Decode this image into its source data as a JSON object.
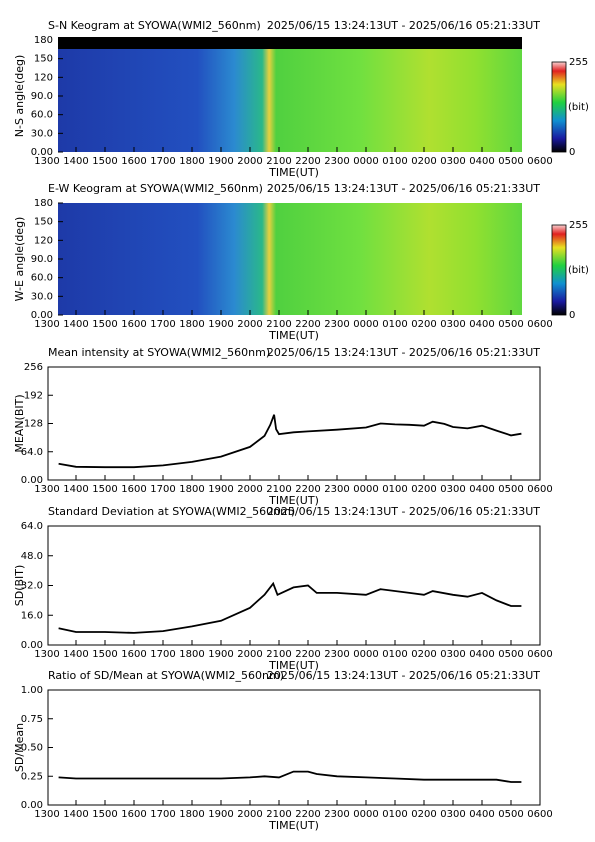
{
  "chart_data": [
    {
      "type": "keogram",
      "title": "S-N Keogram at SYOWA(WMI2_560nm)",
      "subtitle": "2025/06/15 13:24:13UT - 2025/06/16 05:21:33UT",
      "y_label": "N-S angle(deg)",
      "x_label": "TIME(UT)",
      "xlim": [
        13,
        30
      ],
      "xticks": [
        {
          "value": 13,
          "label": "1300"
        },
        {
          "value": 14,
          "label": "1400"
        },
        {
          "value": 15,
          "label": "1500"
        },
        {
          "value": 16,
          "label": "1600"
        },
        {
          "value": 17,
          "label": "1700"
        },
        {
          "value": 18,
          "label": "1800"
        },
        {
          "value": 19,
          "label": "1900"
        },
        {
          "value": 20,
          "label": "2000"
        },
        {
          "value": 21,
          "label": "2100"
        },
        {
          "value": 22,
          "label": "2200"
        },
        {
          "value": 23,
          "label": "2300"
        },
        {
          "value": 24,
          "label": "0000"
        },
        {
          "value": 25,
          "label": "0100"
        },
        {
          "value": 26,
          "label": "0200"
        },
        {
          "value": 27,
          "label": "0300"
        },
        {
          "value": 28,
          "label": "0400"
        },
        {
          "value": 29,
          "label": "0500"
        },
        {
          "value": 30,
          "label": "0600"
        }
      ],
      "ylim": [
        0,
        180
      ],
      "yticks": [
        {
          "value": 0,
          "label": "0.00"
        },
        {
          "value": 30,
          "label": "30.0"
        },
        {
          "value": 60,
          "label": "60.0"
        },
        {
          "value": 90,
          "label": "90.0"
        },
        120,
        150,
        180
      ],
      "colorbar_label": "(bit)",
      "colorbar_ticks": [
        0,
        255
      ]
    },
    {
      "type": "keogram",
      "title": "E-W Keogram at SYOWA(WMI2_560nm)",
      "subtitle": "2025/06/15 13:24:13UT - 2025/06/16 05:21:33UT",
      "y_label": "W-E angle(deg)",
      "x_label": "TIME(UT)",
      "xlim": [
        13,
        30
      ],
      "xticks": [
        {
          "value": 13,
          "label": "1300"
        },
        {
          "value": 14,
          "label": "1400"
        },
        {
          "value": 15,
          "label": "1500"
        },
        {
          "value": 16,
          "label": "1600"
        },
        {
          "value": 17,
          "label": "1700"
        },
        {
          "value": 18,
          "label": "1800"
        },
        {
          "value": 19,
          "label": "1900"
        },
        {
          "value": 20,
          "label": "2000"
        },
        {
          "value": 21,
          "label": "2100"
        },
        {
          "value": 22,
          "label": "2200"
        },
        {
          "value": 23,
          "label": "2300"
        },
        {
          "value": 24,
          "label": "0000"
        },
        {
          "value": 25,
          "label": "0100"
        },
        {
          "value": 26,
          "label": "0200"
        },
        {
          "value": 27,
          "label": "0300"
        },
        {
          "value": 28,
          "label": "0400"
        },
        {
          "value": 29,
          "label": "0500"
        },
        {
          "value": 30,
          "label": "0600"
        }
      ],
      "ylim": [
        0,
        180
      ],
      "yticks": [
        {
          "value": 0,
          "label": "0.00"
        },
        {
          "value": 30,
          "label": "30.0"
        },
        {
          "value": 60,
          "label": "60.0"
        },
        {
          "value": 90,
          "label": "90.0"
        },
        120,
        150,
        180
      ],
      "colorbar_label": "(bit)",
      "colorbar_ticks": [
        0,
        255
      ]
    },
    {
      "type": "line",
      "title": "Mean intensity at SYOWA(WMI2_560nm)",
      "subtitle": "2025/06/15 13:24:13UT - 2025/06/16 05:21:33UT",
      "y_label": "MEAN(BIT)",
      "x_label": "TIME(UT)",
      "color": "#000000",
      "xlim": [
        13,
        30
      ],
      "xticks": [
        {
          "value": 13,
          "label": "1300"
        },
        {
          "value": 14,
          "label": "1400"
        },
        {
          "value": 15,
          "label": "1500"
        },
        {
          "value": 16,
          "label": "1600"
        },
        {
          "value": 17,
          "label": "1700"
        },
        {
          "value": 18,
          "label": "1800"
        },
        {
          "value": 19,
          "label": "1900"
        },
        {
          "value": 20,
          "label": "2000"
        },
        {
          "value": 21,
          "label": "2100"
        },
        {
          "value": 22,
          "label": "2200"
        },
        {
          "value": 23,
          "label": "2300"
        },
        {
          "value": 24,
          "label": "0000"
        },
        {
          "value": 25,
          "label": "0100"
        },
        {
          "value": 26,
          "label": "0200"
        },
        {
          "value": 27,
          "label": "0300"
        },
        {
          "value": 28,
          "label": "0400"
        },
        {
          "value": 29,
          "label": "0500"
        },
        {
          "value": 30,
          "label": "0600"
        }
      ],
      "ylim": [
        0,
        256
      ],
      "yticks": [
        {
          "value": 0,
          "label": "0.00"
        },
        {
          "value": 64,
          "label": "64.0"
        },
        128,
        192,
        256
      ],
      "x": [
        13.4,
        14,
        15,
        16,
        17,
        18,
        19,
        20,
        20.5,
        20.7,
        20.83,
        20.9,
        21,
        21.5,
        22,
        23,
        24,
        24.5,
        25,
        25.5,
        26,
        26.3,
        26.7,
        27,
        27.5,
        28,
        28.5,
        29,
        29.36
      ],
      "values": [
        37,
        30,
        29,
        29,
        33,
        41,
        53,
        75,
        100,
        125,
        148,
        115,
        104,
        108,
        110,
        114,
        119,
        128,
        126,
        125,
        123,
        132,
        127,
        120,
        117,
        123,
        112,
        101,
        105
      ]
    },
    {
      "type": "line",
      "title": "Standard Deviation at SYOWA(WMI2_560nm)",
      "subtitle": "2025/06/15 13:24:13UT - 2025/06/16 05:21:33UT",
      "y_label": "SD(BIT)",
      "x_label": "TIME(UT)",
      "color": "#000000",
      "xlim": [
        13,
        30
      ],
      "xticks": [
        {
          "value": 13,
          "label": "1300"
        },
        {
          "value": 14,
          "label": "1400"
        },
        {
          "value": 15,
          "label": "1500"
        },
        {
          "value": 16,
          "label": "1600"
        },
        {
          "value": 17,
          "label": "1700"
        },
        {
          "value": 18,
          "label": "1800"
        },
        {
          "value": 19,
          "label": "1900"
        },
        {
          "value": 20,
          "label": "2000"
        },
        {
          "value": 21,
          "label": "2100"
        },
        {
          "value": 22,
          "label": "2200"
        },
        {
          "value": 23,
          "label": "2300"
        },
        {
          "value": 24,
          "label": "0000"
        },
        {
          "value": 25,
          "label": "0100"
        },
        {
          "value": 26,
          "label": "0200"
        },
        {
          "value": 27,
          "label": "0300"
        },
        {
          "value": 28,
          "label": "0400"
        },
        {
          "value": 29,
          "label": "0500"
        },
        {
          "value": 30,
          "label": "0600"
        }
      ],
      "ylim": [
        0,
        64
      ],
      "yticks": [
        {
          "value": 0,
          "label": "0.00"
        },
        {
          "value": 16,
          "label": "16.0"
        },
        {
          "value": 32,
          "label": "32.0"
        },
        {
          "value": 48,
          "label": "48.0"
        },
        {
          "value": 64,
          "label": "64.0"
        }
      ],
      "x": [
        13.4,
        14,
        15,
        16,
        17,
        18,
        19,
        20,
        20.5,
        20.8,
        20.95,
        21.5,
        22,
        22.3,
        23,
        24,
        24.5,
        25.5,
        26,
        26.3,
        27,
        27.5,
        28,
        28.5,
        29,
        29.36
      ],
      "values": [
        9,
        7,
        7,
        6.5,
        7.5,
        10,
        13,
        20,
        27,
        33,
        27,
        31,
        32,
        28,
        28,
        27,
        30,
        28,
        27,
        29,
        27,
        26,
        28,
        24,
        21,
        21
      ]
    },
    {
      "type": "line",
      "title": "Ratio of SD/Mean at SYOWA(WMI2_560nm)",
      "subtitle": "2025/06/15 13:24:13UT - 2025/06/16 05:21:33UT",
      "y_label": "SD/Mean",
      "x_label": "TIME(UT)",
      "color": "#000000",
      "xlim": [
        13,
        30
      ],
      "xticks": [
        {
          "value": 13,
          "label": "1300"
        },
        {
          "value": 14,
          "label": "1400"
        },
        {
          "value": 15,
          "label": "1500"
        },
        {
          "value": 16,
          "label": "1600"
        },
        {
          "value": 17,
          "label": "1700"
        },
        {
          "value": 18,
          "label": "1800"
        },
        {
          "value": 19,
          "label": "1900"
        },
        {
          "value": 20,
          "label": "2000"
        },
        {
          "value": 21,
          "label": "2100"
        },
        {
          "value": 22,
          "label": "2200"
        },
        {
          "value": 23,
          "label": "2300"
        },
        {
          "value": 24,
          "label": "0000"
        },
        {
          "value": 25,
          "label": "0100"
        },
        {
          "value": 26,
          "label": "0200"
        },
        {
          "value": 27,
          "label": "0300"
        },
        {
          "value": 28,
          "label": "0400"
        },
        {
          "value": 29,
          "label": "0500"
        },
        {
          "value": 30,
          "label": "0600"
        }
      ],
      "ylim": [
        0,
        1
      ],
      "yticks": [
        {
          "value": 0,
          "label": "0.00"
        },
        0.25,
        {
          "value": 0.5,
          "label": "0.50"
        },
        0.75,
        {
          "value": 1,
          "label": "1.00"
        }
      ],
      "x": [
        13.4,
        14,
        15,
        16,
        17,
        18,
        19,
        20,
        20.5,
        21,
        21.5,
        22,
        22.3,
        23,
        24,
        25,
        26,
        27,
        28,
        28.5,
        29,
        29.36
      ],
      "values": [
        0.24,
        0.23,
        0.23,
        0.23,
        0.23,
        0.23,
        0.23,
        0.24,
        0.25,
        0.24,
        0.29,
        0.29,
        0.27,
        0.25,
        0.24,
        0.23,
        0.22,
        0.22,
        0.22,
        0.22,
        0.2,
        0.2
      ]
    }
  ]
}
